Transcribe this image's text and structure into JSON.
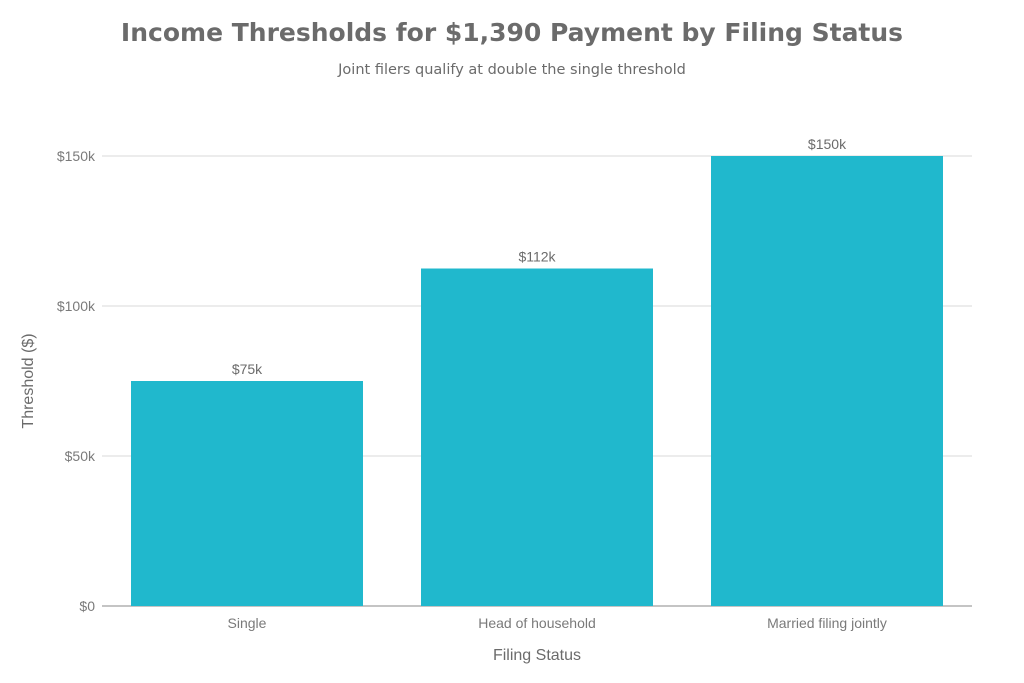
{
  "chart_data": {
    "type": "bar",
    "title": "Income Thresholds for $1,390 Payment by Filing Status",
    "subtitle": "Joint filers qualify at double the single threshold",
    "xlabel": "Filing Status",
    "ylabel": "Threshold ($)",
    "categories": [
      "Single",
      "Head of household",
      "Married filing jointly"
    ],
    "values": [
      75000,
      112500,
      150000
    ],
    "data_labels": [
      "$75k",
      "$112k",
      "$150k"
    ],
    "ylim": [
      0,
      150000
    ],
    "yticks": [
      0,
      50000,
      100000,
      150000
    ],
    "ytick_labels": [
      "$0",
      "$50k",
      "$100k",
      "$150k"
    ],
    "grid": true,
    "bar_color": "#20B8CD",
    "gridline_color": "#d9d9d9"
  }
}
